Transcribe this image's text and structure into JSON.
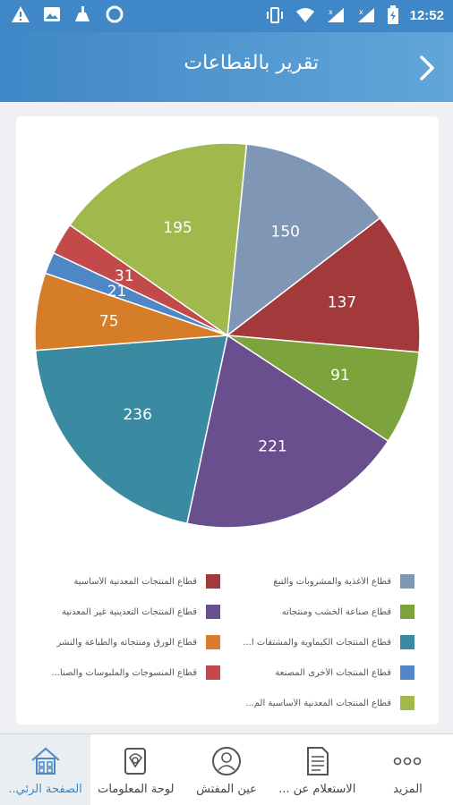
{
  "status_bar": {
    "time": "12:52"
  },
  "header": {
    "title": "تقرير بالقطاعات"
  },
  "chart_data": {
    "type": "pie",
    "categories": [
      "قطاع الأغذية والمشروبات والتبغ",
      "قطاع المنتجات المعدنية الأساسية",
      "قطاع صناعة الخشب ومنتجاته",
      "قطاع المنتجات التعدينية غير المعدنية",
      "قطاع المنتجات الكيماوية والمشتقات ا...",
      "قطاع الورق ومنتجاته والطباعة والنشر",
      "قطاع المنتجات الأخرى المصنعة",
      "قطاع المنسوجات والملبوسات والصنا...",
      "قطاع المنتجات المعدنية الأساسية الم..."
    ],
    "values": [
      150,
      137,
      91,
      221,
      236,
      75,
      21,
      31,
      195
    ],
    "colors": [
      "#7f97b4",
      "#a2393a",
      "#7da33d",
      "#6a4f8f",
      "#3a8aa1",
      "#d67d2a",
      "#4f86c6",
      "#c34a4a",
      "#a1b94c"
    ]
  },
  "bottom_nav": {
    "items": [
      {
        "label": "الصفحة الرئي.."
      },
      {
        "label": "لوحة المعلومات"
      },
      {
        "label": "عين المفتش"
      },
      {
        "label": "الاستعلام عن ..."
      },
      {
        "label": "المزيد"
      }
    ]
  }
}
